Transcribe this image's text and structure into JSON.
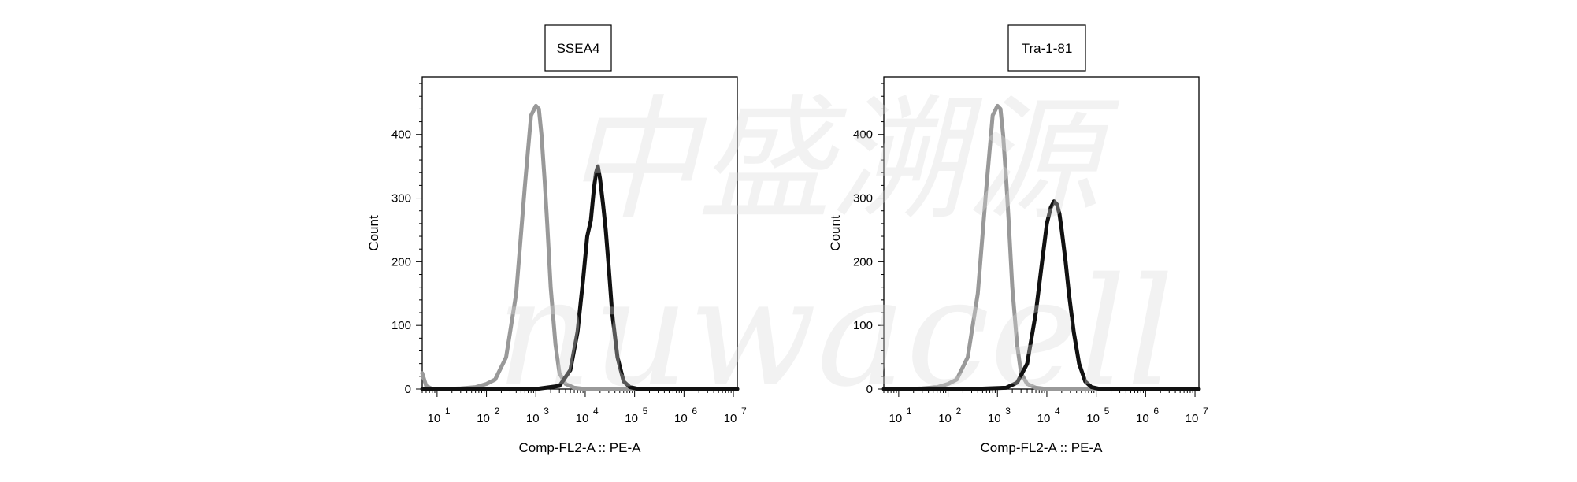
{
  "watermark": {
    "line1": "中盛溯源",
    "line2": "nuwacell",
    "color": "#d9d9d9"
  },
  "chart_data": [
    {
      "type": "line",
      "title": "SSEA4",
      "xlabel": "Comp-FL2-A :: PE-A",
      "ylabel": "Count",
      "x_scale": "log",
      "xlim": [
        5,
        12000000
      ],
      "ylim": [
        0,
        490
      ],
      "x_ticks": [
        {
          "base": "10",
          "exp": "1"
        },
        {
          "base": "10",
          "exp": "2"
        },
        {
          "base": "10",
          "exp": "3"
        },
        {
          "base": "10",
          "exp": "4"
        },
        {
          "base": "10",
          "exp": "5"
        },
        {
          "base": "10",
          "exp": "6"
        },
        {
          "base": "10",
          "exp": "7"
        }
      ],
      "y_ticks": [
        "0",
        "100",
        "200",
        "300",
        "400"
      ],
      "series": [
        {
          "color": "#999999",
          "x": [
            5,
            6,
            8,
            15,
            30,
            60,
            100,
            150,
            250,
            400,
            600,
            800,
            1000,
            1150,
            1300,
            1500,
            1700,
            2000,
            2500,
            3000,
            4000,
            6000,
            10000,
            100000,
            12000000
          ],
          "y": [
            25,
            5,
            0,
            0,
            1,
            3,
            8,
            15,
            50,
            150,
            320,
            430,
            445,
            440,
            400,
            330,
            260,
            160,
            70,
            25,
            8,
            2,
            0,
            0,
            0
          ]
        },
        {
          "color": "#111111",
          "x": [
            5,
            100,
            1000,
            3000,
            5000,
            7000,
            9000,
            11000,
            13000,
            15000,
            16500,
            18000,
            20000,
            23000,
            26000,
            30000,
            35000,
            45000,
            60000,
            80000,
            120000,
            12000000
          ],
          "y": [
            0,
            0,
            0,
            5,
            30,
            90,
            170,
            240,
            265,
            315,
            340,
            350,
            330,
            290,
            250,
            190,
            120,
            50,
            12,
            3,
            0,
            0
          ]
        }
      ]
    },
    {
      "type": "line",
      "title": "Tra-1-81",
      "xlabel": "Comp-FL2-A :: PE-A",
      "ylabel": "Count",
      "x_scale": "log",
      "xlim": [
        5,
        12000000
      ],
      "ylim": [
        0,
        490
      ],
      "x_ticks": [
        {
          "base": "10",
          "exp": "1"
        },
        {
          "base": "10",
          "exp": "2"
        },
        {
          "base": "10",
          "exp": "3"
        },
        {
          "base": "10",
          "exp": "4"
        },
        {
          "base": "10",
          "exp": "5"
        },
        {
          "base": "10",
          "exp": "6"
        },
        {
          "base": "10",
          "exp": "7"
        }
      ],
      "y_ticks": [
        "0",
        "100",
        "200",
        "300",
        "400"
      ],
      "series": [
        {
          "color": "#999999",
          "x": [
            5,
            15,
            30,
            60,
            100,
            150,
            250,
            400,
            600,
            800,
            1000,
            1150,
            1300,
            1500,
            1700,
            2000,
            2500,
            3000,
            4000,
            6000,
            10000,
            100000,
            12000000
          ],
          "y": [
            0,
            0,
            1,
            3,
            8,
            15,
            50,
            150,
            320,
            430,
            445,
            440,
            400,
            330,
            260,
            160,
            70,
            25,
            8,
            2,
            0,
            0,
            0
          ]
        },
        {
          "color": "#111111",
          "x": [
            5,
            300,
            1500,
            2500,
            4000,
            6000,
            8000,
            10000,
            12000,
            14000,
            16000,
            18000,
            20000,
            24000,
            28000,
            35000,
            45000,
            60000,
            80000,
            120000,
            12000000
          ],
          "y": [
            0,
            0,
            2,
            10,
            40,
            120,
            200,
            260,
            285,
            295,
            290,
            275,
            250,
            200,
            150,
            90,
            40,
            12,
            3,
            0,
            0
          ]
        }
      ]
    }
  ]
}
